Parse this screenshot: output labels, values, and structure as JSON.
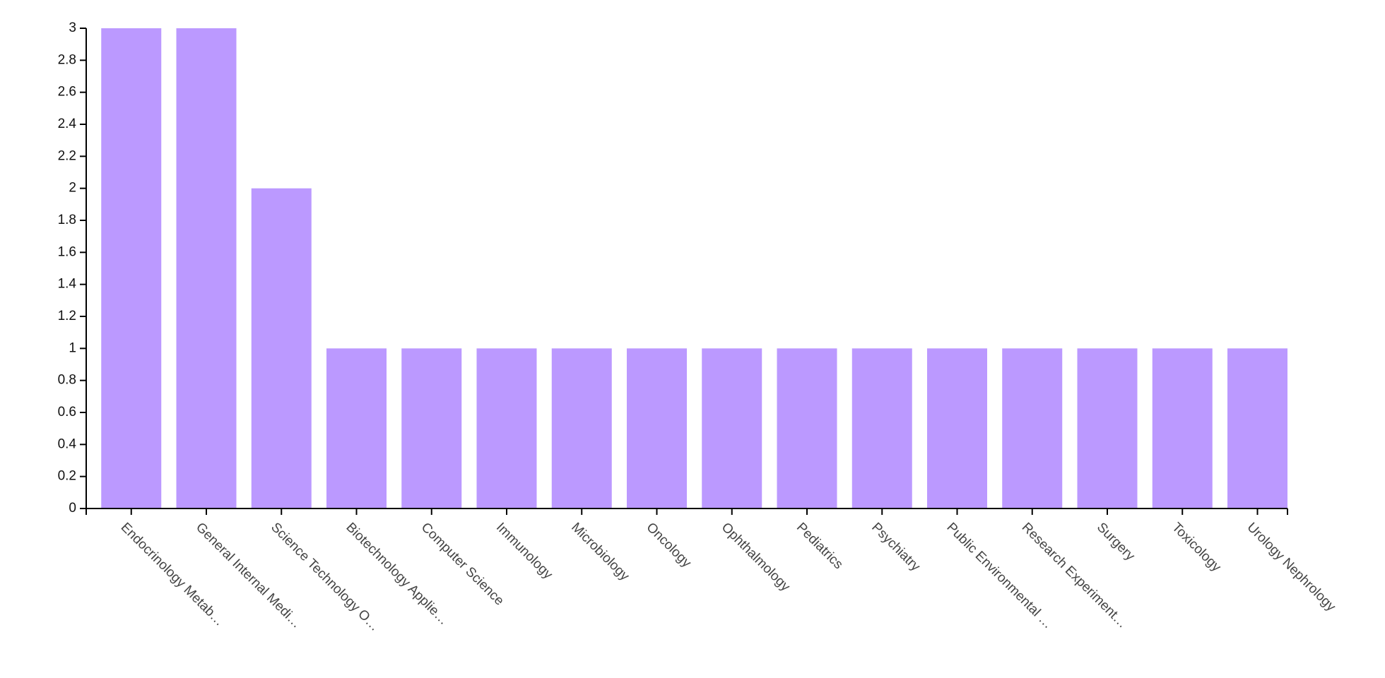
{
  "chart_data": {
    "type": "bar",
    "title": "",
    "xlabel": "",
    "ylabel": "",
    "ylim": [
      0,
      3
    ],
    "yticks": [
      0,
      0.2,
      0.4,
      0.6,
      0.8,
      1,
      1.2,
      1.4,
      1.6,
      1.8,
      2,
      2.2,
      2.4,
      2.6,
      2.8,
      3
    ],
    "ytick_labels": [
      "0",
      "0.2",
      "0.4",
      "0.6",
      "0.8",
      "1",
      "1.2",
      "1.4",
      "1.6",
      "1.8",
      "2",
      "2.2",
      "2.4",
      "2.6",
      "2.8",
      "3"
    ],
    "categories": [
      "Endocrinology Metab…",
      "General Internal Medi…",
      "Science Technology O…",
      "Biotechnology Applie…",
      "Computer Science",
      "Immunology",
      "Microbiology",
      "Oncology",
      "Ophthalmology",
      "Pediatrics",
      "Psychiatry",
      "Public Environmental …",
      "Research Experiment…",
      "Surgery",
      "Toxicology",
      "Urology Nephrology"
    ],
    "values": [
      3,
      3,
      2,
      1,
      1,
      1,
      1,
      1,
      1,
      1,
      1,
      1,
      1,
      1,
      1,
      1
    ],
    "bar_color": "#bb99ff",
    "axis_color": "#000000",
    "grid": false,
    "legend": "none"
  }
}
